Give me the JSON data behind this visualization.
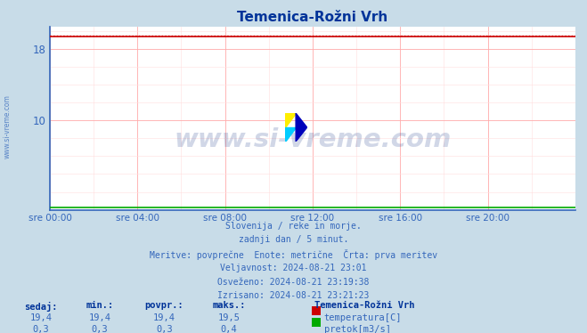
{
  "title": "Temenica-Rožni Vrh",
  "title_color": "#003399",
  "fig_bg_color": "#c8dce8",
  "plot_bg_color": "#ffffff",
  "x_tick_labels": [
    "sre 00:00",
    "sre 04:00",
    "sre 08:00",
    "sre 12:00",
    "sre 16:00",
    "sre 20:00"
  ],
  "x_ticks_hours": [
    0,
    4,
    8,
    12,
    16,
    20
  ],
  "x_max": 24,
  "y_ticks": [
    10,
    18
  ],
  "y_min": 0,
  "y_max": 20.5,
  "temp_value": 19.4,
  "temp_max_value": 19.5,
  "flow_value": 0.3,
  "temp_color": "#cc0000",
  "flow_color": "#00aa00",
  "dotted_line_color": "#cc0000",
  "grid_color": "#ffaaaa",
  "grid_color_minor": "#ffdddd",
  "axis_color": "#3366bb",
  "tick_color": "#3366bb",
  "watermark_text": "www.si-vreme.com",
  "watermark_color": "#1a3a8a",
  "watermark_alpha": 0.2,
  "sidebar_text": "www.si-vreme.com",
  "sidebar_color": "#3366bb",
  "info_lines": [
    "Slovenija / reke in morje.",
    "zadnji dan / 5 minut.",
    "Meritve: povprečne  Enote: metrične  Črta: prva meritev",
    "Veljavnost: 2024-08-21 23:01",
    "Osveženo: 2024-08-21 23:19:38",
    "Izrisano: 2024-08-21 23:21:23"
  ],
  "info_color": "#3366bb",
  "legend_title": "Temenica-Rožni Vrh",
  "legend_title_color": "#003399",
  "legend_entries": [
    {
      "label": "temperatura[C]",
      "color": "#cc0000"
    },
    {
      "label": "pretok[m3/s]",
      "color": "#00aa00"
    }
  ],
  "stats_headers": [
    "sedaj:",
    "min.:",
    "povpr.:",
    "maks.:"
  ],
  "stats_header_color": "#003399",
  "stats_color": "#3366bb",
  "stats_rows": [
    [
      "19,4",
      "19,4",
      "19,4",
      "19,5"
    ],
    [
      "0,3",
      "0,3",
      "0,3",
      "0,4"
    ]
  ]
}
